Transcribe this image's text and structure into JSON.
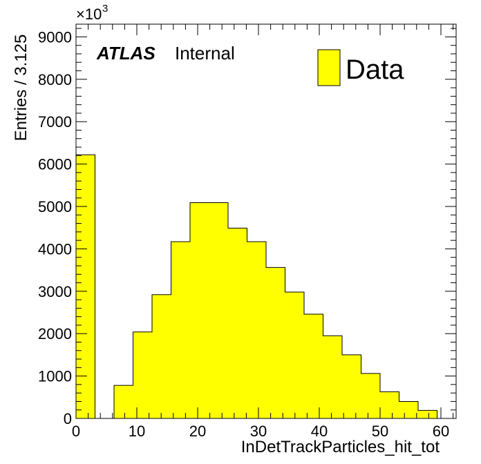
{
  "chart_data": {
    "type": "bar",
    "histogram": true,
    "x_bin_edges": [
      0,
      3.125,
      6.25,
      9.375,
      12.5,
      15.625,
      18.75,
      21.875,
      25,
      28.125,
      31.25,
      34.375,
      37.5,
      40.625,
      43.75,
      46.875,
      50,
      53.125,
      56.25,
      59.375
    ],
    "values": [
      6220,
      0,
      780,
      2040,
      2920,
      4170,
      5090,
      5090,
      4490,
      4170,
      3560,
      2980,
      2460,
      1950,
      1500,
      1060,
      630,
      400,
      190
    ],
    "xlim": [
      0,
      62.5
    ],
    "ylim": [
      0,
      9300
    ],
    "x_ticks": [
      "0",
      "10",
      "20",
      "30",
      "40",
      "50",
      "60"
    ],
    "y_ticks": [
      "0",
      "1000",
      "2000",
      "3000",
      "4000",
      "5000",
      "6000",
      "7000",
      "8000",
      "9000"
    ],
    "y_multiplier": "×10",
    "y_multiplier_exp": "3",
    "xlabel": "InDetTrackParticles_hit_tot",
    "ylabel": "Entries / 3.125",
    "series": [
      {
        "name": "Data",
        "color": "#ffff00"
      }
    ],
    "legend": {
      "placement": "top-right",
      "label": "Data"
    },
    "labels": {
      "experiment": "ATLAS",
      "status": "Internal"
    },
    "grid": false
  }
}
